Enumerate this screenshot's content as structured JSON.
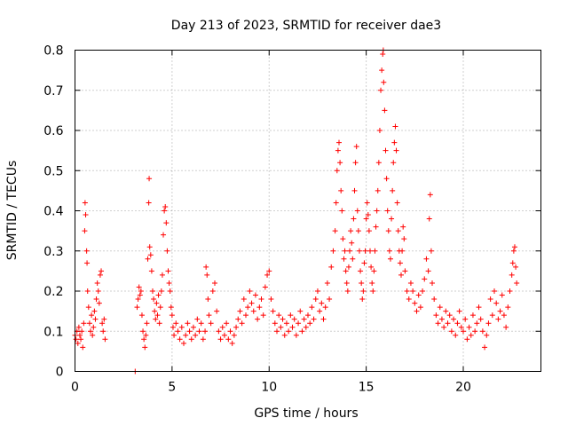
{
  "chart_data": {
    "type": "scatter",
    "title": "Day 213 of 2023, SRMTID for receiver dae3",
    "xlabel": "GPS time / hours",
    "ylabel": "SRMTID / TECUs",
    "xlim": [
      0,
      24
    ],
    "ylim": [
      0,
      0.8
    ],
    "x_ticks": [
      0,
      5,
      10,
      15,
      20
    ],
    "y_ticks": [
      0,
      0.1,
      0.2,
      0.3,
      0.4,
      0.5,
      0.6,
      0.7,
      0.8
    ],
    "x_tick_labels": [
      "0",
      "5",
      "10",
      "15",
      "20"
    ],
    "y_tick_labels": [
      "0",
      "0.1",
      "0.2",
      "0.3",
      "0.4",
      "0.5",
      "0.6",
      "0.7",
      "0.8"
    ],
    "grid": true,
    "marker": "+",
    "marker_color": "#ff0000",
    "series": [
      {
        "name": "SRMTID",
        "points": [
          [
            0.0,
            0.09
          ],
          [
            0.05,
            0.08
          ],
          [
            0.1,
            0.1
          ],
          [
            0.15,
            0.07
          ],
          [
            0.2,
            0.11
          ],
          [
            0.25,
            0.09
          ],
          [
            0.3,
            0.08
          ],
          [
            0.35,
            0.1
          ],
          [
            0.4,
            0.06
          ],
          [
            0.45,
            0.12
          ],
          [
            0.5,
            0.35
          ],
          [
            0.52,
            0.42
          ],
          [
            0.55,
            0.39
          ],
          [
            0.6,
            0.3
          ],
          [
            0.62,
            0.27
          ],
          [
            0.65,
            0.2
          ],
          [
            0.7,
            0.16
          ],
          [
            0.75,
            0.12
          ],
          [
            0.8,
            0.1
          ],
          [
            0.85,
            0.14
          ],
          [
            0.9,
            0.09
          ],
          [
            0.95,
            0.11
          ],
          [
            1.0,
            0.15
          ],
          [
            1.05,
            0.13
          ],
          [
            1.1,
            0.18
          ],
          [
            1.15,
            0.22
          ],
          [
            1.2,
            0.2
          ],
          [
            1.25,
            0.17
          ],
          [
            1.3,
            0.24
          ],
          [
            1.35,
            0.25
          ],
          [
            1.4,
            0.12
          ],
          [
            1.45,
            0.1
          ],
          [
            1.5,
            0.13
          ],
          [
            1.55,
            0.08
          ],
          [
            3.1,
            0.0
          ],
          [
            3.2,
            0.16
          ],
          [
            3.25,
            0.18
          ],
          [
            3.3,
            0.21
          ],
          [
            3.35,
            0.19
          ],
          [
            3.4,
            0.2
          ],
          [
            3.45,
            0.14
          ],
          [
            3.5,
            0.1
          ],
          [
            3.55,
            0.08
          ],
          [
            3.6,
            0.06
          ],
          [
            3.65,
            0.09
          ],
          [
            3.7,
            0.12
          ],
          [
            3.75,
            0.28
          ],
          [
            3.8,
            0.42
          ],
          [
            3.82,
            0.48
          ],
          [
            3.85,
            0.31
          ],
          [
            3.9,
            0.29
          ],
          [
            3.95,
            0.25
          ],
          [
            4.0,
            0.2
          ],
          [
            4.05,
            0.18
          ],
          [
            4.1,
            0.15
          ],
          [
            4.15,
            0.13
          ],
          [
            4.2,
            0.17
          ],
          [
            4.25,
            0.14
          ],
          [
            4.3,
            0.19
          ],
          [
            4.35,
            0.12
          ],
          [
            4.4,
            0.16
          ],
          [
            4.45,
            0.2
          ],
          [
            4.5,
            0.24
          ],
          [
            4.55,
            0.34
          ],
          [
            4.6,
            0.4
          ],
          [
            4.65,
            0.41
          ],
          [
            4.7,
            0.37
          ],
          [
            4.75,
            0.3
          ],
          [
            4.8,
            0.25
          ],
          [
            4.85,
            0.22
          ],
          [
            4.9,
            0.2
          ],
          [
            4.95,
            0.16
          ],
          [
            5.0,
            0.14
          ],
          [
            5.05,
            0.11
          ],
          [
            5.1,
            0.09
          ],
          [
            5.2,
            0.12
          ],
          [
            5.3,
            0.1
          ],
          [
            5.4,
            0.08
          ],
          [
            5.5,
            0.11
          ],
          [
            5.6,
            0.07
          ],
          [
            5.7,
            0.09
          ],
          [
            5.8,
            0.12
          ],
          [
            5.9,
            0.1
          ],
          [
            6.0,
            0.08
          ],
          [
            6.1,
            0.11
          ],
          [
            6.2,
            0.09
          ],
          [
            6.3,
            0.13
          ],
          [
            6.4,
            0.1
          ],
          [
            6.5,
            0.12
          ],
          [
            6.6,
            0.08
          ],
          [
            6.7,
            0.1
          ],
          [
            6.75,
            0.26
          ],
          [
            6.8,
            0.24
          ],
          [
            6.85,
            0.18
          ],
          [
            6.9,
            0.14
          ],
          [
            7.0,
            0.12
          ],
          [
            7.1,
            0.2
          ],
          [
            7.2,
            0.22
          ],
          [
            7.3,
            0.15
          ],
          [
            7.4,
            0.1
          ],
          [
            7.5,
            0.08
          ],
          [
            7.6,
            0.11
          ],
          [
            7.7,
            0.09
          ],
          [
            7.8,
            0.12
          ],
          [
            7.9,
            0.08
          ],
          [
            8.0,
            0.1
          ],
          [
            8.1,
            0.07
          ],
          [
            8.2,
            0.09
          ],
          [
            8.3,
            0.11
          ],
          [
            8.4,
            0.13
          ],
          [
            8.5,
            0.15
          ],
          [
            8.6,
            0.12
          ],
          [
            8.7,
            0.18
          ],
          [
            8.8,
            0.14
          ],
          [
            8.9,
            0.16
          ],
          [
            9.0,
            0.2
          ],
          [
            9.1,
            0.17
          ],
          [
            9.2,
            0.15
          ],
          [
            9.3,
            0.19
          ],
          [
            9.4,
            0.13
          ],
          [
            9.5,
            0.16
          ],
          [
            9.6,
            0.18
          ],
          [
            9.7,
            0.14
          ],
          [
            9.8,
            0.21
          ],
          [
            9.9,
            0.24
          ],
          [
            10.0,
            0.25
          ],
          [
            10.1,
            0.18
          ],
          [
            10.2,
            0.15
          ],
          [
            10.3,
            0.12
          ],
          [
            10.4,
            0.1
          ],
          [
            10.5,
            0.14
          ],
          [
            10.6,
            0.11
          ],
          [
            10.7,
            0.13
          ],
          [
            10.8,
            0.09
          ],
          [
            10.9,
            0.12
          ],
          [
            11.0,
            0.1
          ],
          [
            11.1,
            0.14
          ],
          [
            11.2,
            0.11
          ],
          [
            11.3,
            0.13
          ],
          [
            11.4,
            0.09
          ],
          [
            11.5,
            0.12
          ],
          [
            11.6,
            0.15
          ],
          [
            11.7,
            0.1
          ],
          [
            11.8,
            0.13
          ],
          [
            11.9,
            0.11
          ],
          [
            12.0,
            0.14
          ],
          [
            12.1,
            0.12
          ],
          [
            12.2,
            0.16
          ],
          [
            12.3,
            0.13
          ],
          [
            12.4,
            0.18
          ],
          [
            12.5,
            0.2
          ],
          [
            12.6,
            0.15
          ],
          [
            12.7,
            0.17
          ],
          [
            12.8,
            0.13
          ],
          [
            12.9,
            0.16
          ],
          [
            13.0,
            0.22
          ],
          [
            13.1,
            0.18
          ],
          [
            13.2,
            0.26
          ],
          [
            13.3,
            0.3
          ],
          [
            13.4,
            0.35
          ],
          [
            13.45,
            0.42
          ],
          [
            13.5,
            0.5
          ],
          [
            13.55,
            0.55
          ],
          [
            13.6,
            0.57
          ],
          [
            13.65,
            0.52
          ],
          [
            13.7,
            0.45
          ],
          [
            13.75,
            0.4
          ],
          [
            13.8,
            0.33
          ],
          [
            13.85,
            0.28
          ],
          [
            13.9,
            0.3
          ],
          [
            13.95,
            0.25
          ],
          [
            14.0,
            0.22
          ],
          [
            14.05,
            0.2
          ],
          [
            14.1,
            0.26
          ],
          [
            14.15,
            0.3
          ],
          [
            14.2,
            0.35
          ],
          [
            14.25,
            0.32
          ],
          [
            14.3,
            0.28
          ],
          [
            14.35,
            0.38
          ],
          [
            14.4,
            0.45
          ],
          [
            14.45,
            0.52
          ],
          [
            14.5,
            0.56
          ],
          [
            14.55,
            0.4
          ],
          [
            14.6,
            0.35
          ],
          [
            14.65,
            0.3
          ],
          [
            14.7,
            0.25
          ],
          [
            14.75,
            0.22
          ],
          [
            14.8,
            0.18
          ],
          [
            14.85,
            0.2
          ],
          [
            14.9,
            0.27
          ],
          [
            14.95,
            0.3
          ],
          [
            15.0,
            0.38
          ],
          [
            15.05,
            0.42
          ],
          [
            15.1,
            0.39
          ],
          [
            15.15,
            0.35
          ],
          [
            15.2,
            0.3
          ],
          [
            15.25,
            0.26
          ],
          [
            15.3,
            0.22
          ],
          [
            15.35,
            0.2
          ],
          [
            15.4,
            0.25
          ],
          [
            15.45,
            0.3
          ],
          [
            15.5,
            0.36
          ],
          [
            15.55,
            0.4
          ],
          [
            15.6,
            0.45
          ],
          [
            15.65,
            0.52
          ],
          [
            15.7,
            0.6
          ],
          [
            15.75,
            0.7
          ],
          [
            15.8,
            0.75
          ],
          [
            15.85,
            0.79
          ],
          [
            15.88,
            0.8
          ],
          [
            15.9,
            0.72
          ],
          [
            15.95,
            0.65
          ],
          [
            16.0,
            0.55
          ],
          [
            16.05,
            0.48
          ],
          [
            16.1,
            0.4
          ],
          [
            16.15,
            0.35
          ],
          [
            16.2,
            0.3
          ],
          [
            16.25,
            0.28
          ],
          [
            16.3,
            0.38
          ],
          [
            16.35,
            0.45
          ],
          [
            16.4,
            0.52
          ],
          [
            16.45,
            0.57
          ],
          [
            16.5,
            0.61
          ],
          [
            16.55,
            0.55
          ],
          [
            16.6,
            0.42
          ],
          [
            16.65,
            0.35
          ],
          [
            16.7,
            0.3
          ],
          [
            16.75,
            0.27
          ],
          [
            16.8,
            0.24
          ],
          [
            16.85,
            0.3
          ],
          [
            16.9,
            0.36
          ],
          [
            16.95,
            0.33
          ],
          [
            17.0,
            0.25
          ],
          [
            17.1,
            0.2
          ],
          [
            17.2,
            0.18
          ],
          [
            17.3,
            0.22
          ],
          [
            17.4,
            0.2
          ],
          [
            17.5,
            0.17
          ],
          [
            17.6,
            0.15
          ],
          [
            17.7,
            0.19
          ],
          [
            17.8,
            0.16
          ],
          [
            17.9,
            0.2
          ],
          [
            18.0,
            0.23
          ],
          [
            18.1,
            0.28
          ],
          [
            18.2,
            0.25
          ],
          [
            18.25,
            0.38
          ],
          [
            18.3,
            0.44
          ],
          [
            18.35,
            0.3
          ],
          [
            18.4,
            0.22
          ],
          [
            18.5,
            0.18
          ],
          [
            18.6,
            0.14
          ],
          [
            18.7,
            0.12
          ],
          [
            18.8,
            0.16
          ],
          [
            18.9,
            0.13
          ],
          [
            19.0,
            0.11
          ],
          [
            19.1,
            0.15
          ],
          [
            19.2,
            0.12
          ],
          [
            19.3,
            0.14
          ],
          [
            19.4,
            0.1
          ],
          [
            19.5,
            0.13
          ],
          [
            19.6,
            0.09
          ],
          [
            19.7,
            0.12
          ],
          [
            19.8,
            0.15
          ],
          [
            19.9,
            0.11
          ],
          [
            20.0,
            0.1
          ],
          [
            20.1,
            0.13
          ],
          [
            20.2,
            0.08
          ],
          [
            20.3,
            0.11
          ],
          [
            20.4,
            0.09
          ],
          [
            20.5,
            0.14
          ],
          [
            20.6,
            0.1
          ],
          [
            20.7,
            0.12
          ],
          [
            20.8,
            0.16
          ],
          [
            20.9,
            0.13
          ],
          [
            21.0,
            0.1
          ],
          [
            21.1,
            0.06
          ],
          [
            21.2,
            0.09
          ],
          [
            21.3,
            0.12
          ],
          [
            21.4,
            0.18
          ],
          [
            21.5,
            0.14
          ],
          [
            21.6,
            0.2
          ],
          [
            21.7,
            0.17
          ],
          [
            21.8,
            0.13
          ],
          [
            21.9,
            0.15
          ],
          [
            22.0,
            0.19
          ],
          [
            22.1,
            0.14
          ],
          [
            22.2,
            0.11
          ],
          [
            22.3,
            0.16
          ],
          [
            22.4,
            0.2
          ],
          [
            22.5,
            0.24
          ],
          [
            22.55,
            0.27
          ],
          [
            22.6,
            0.3
          ],
          [
            22.65,
            0.31
          ],
          [
            22.7,
            0.26
          ],
          [
            22.75,
            0.22
          ]
        ]
      }
    ]
  }
}
